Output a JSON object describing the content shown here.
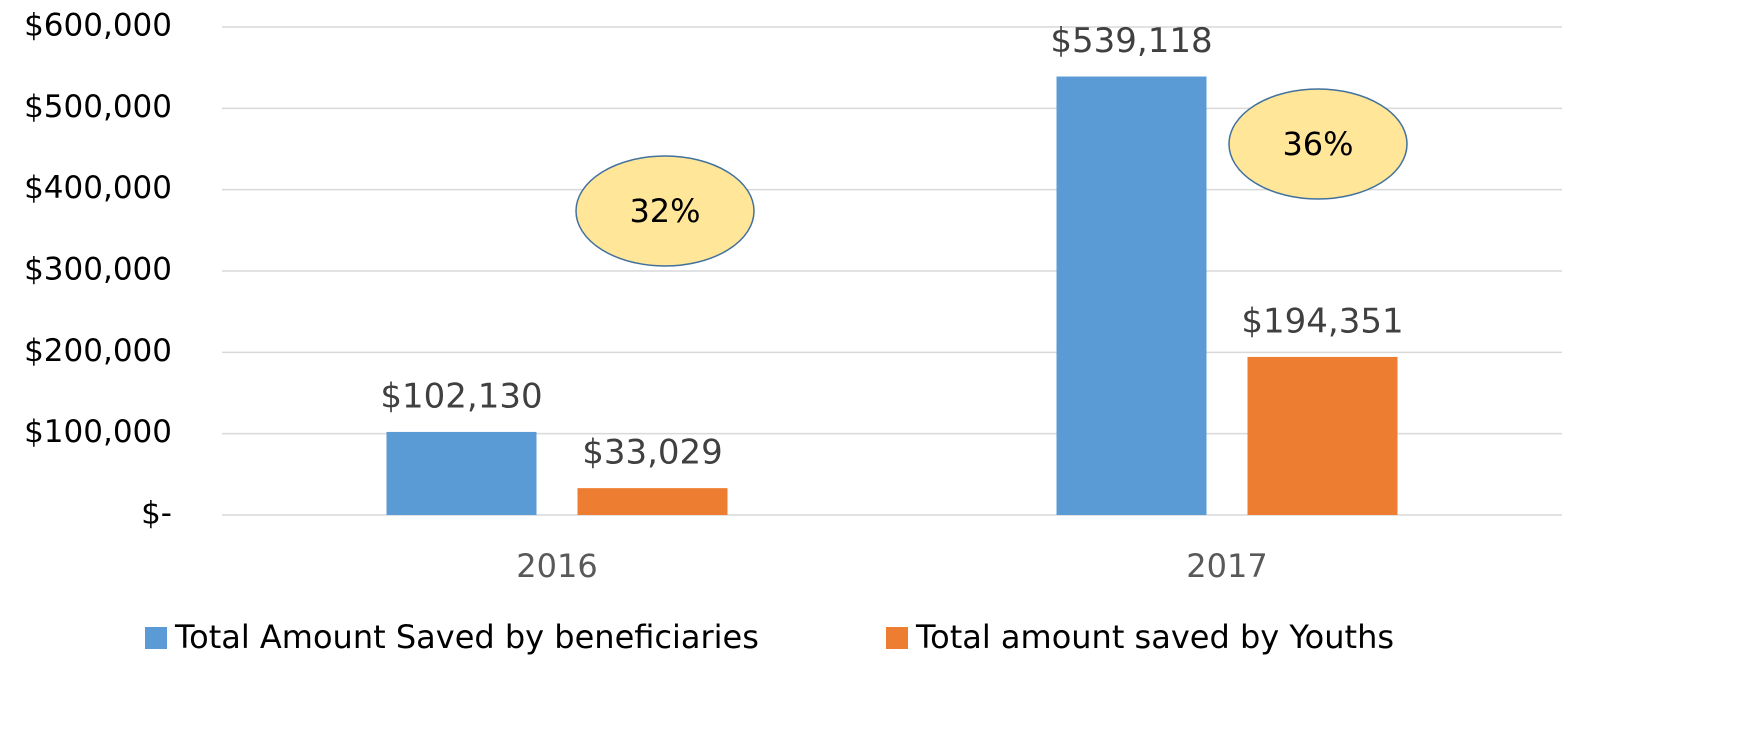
{
  "chart_data": {
    "type": "bar",
    "categories": [
      "2016",
      "2017"
    ],
    "series": [
      {
        "name": "Total Amount Saved by beneficiaries",
        "color": "#5b9bd5",
        "values": [
          102130,
          539118
        ],
        "value_labels": [
          "$102,130",
          "$539,118"
        ]
      },
      {
        "name": "Total amount saved by Youths",
        "color": "#ed7d31",
        "values": [
          33029,
          194351
        ],
        "value_labels": [
          "$33,029",
          "$194,351"
        ]
      }
    ],
    "annotations": [
      "32%",
      "36%"
    ],
    "ylim": [
      0,
      600000
    ],
    "yticks": [
      {
        "value": 0,
        "label": "$-"
      },
      {
        "value": 100000,
        "label": "$100,000"
      },
      {
        "value": 200000,
        "label": "$200,000"
      },
      {
        "value": 300000,
        "label": "$300,000"
      },
      {
        "value": 400000,
        "label": "$400,000"
      },
      {
        "value": 500000,
        "label": "$500,000"
      },
      {
        "value": 600000,
        "label": "$600,000"
      }
    ],
    "grid": true,
    "legend": "bottom"
  }
}
